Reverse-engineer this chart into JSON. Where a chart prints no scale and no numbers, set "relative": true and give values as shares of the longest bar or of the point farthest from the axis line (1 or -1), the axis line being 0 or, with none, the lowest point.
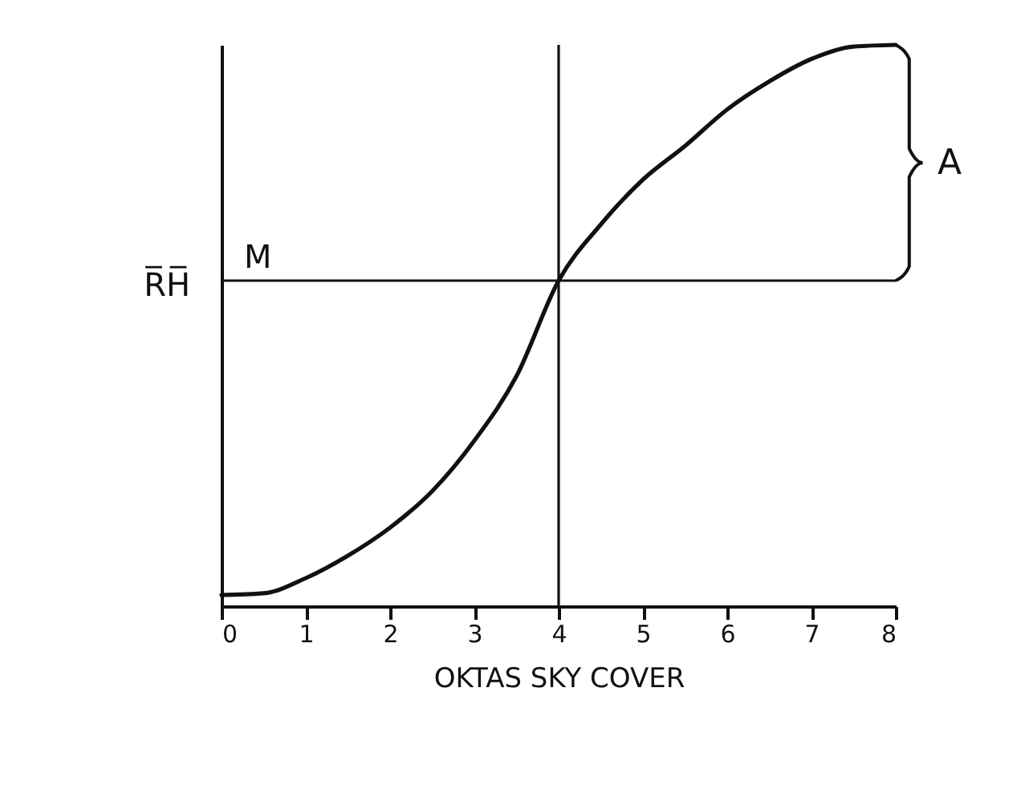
{
  "chart_data": {
    "type": "line",
    "relative": true,
    "xlabel": "OKTAS SKY COVER",
    "ylabel": "R̅H̅",
    "color": "#111111",
    "x": [
      0,
      0.5,
      1,
      1.5,
      2,
      2.5,
      3,
      3.5,
      4,
      4.5,
      5,
      5.5,
      6,
      6.5,
      7,
      7.5,
      8
    ],
    "values": [
      0.02,
      0.023,
      0.05,
      0.09,
      0.14,
      0.205,
      0.295,
      0.41,
      0.58,
      0.68,
      0.76,
      0.82,
      0.885,
      0.935,
      0.975,
      0.997,
      1
    ],
    "xlim": [
      0,
      8
    ],
    "xticks": [
      0,
      1,
      2,
      3,
      4,
      5,
      6,
      7,
      8
    ],
    "tick_labels": "x",
    "marker": "none",
    "line_style": "solid",
    "ref_lines": [
      {
        "axis": "x",
        "value": 4
      },
      {
        "axis": "y",
        "value": 0.58,
        "label": "M"
      }
    ],
    "annotations": [
      "A"
    ]
  }
}
